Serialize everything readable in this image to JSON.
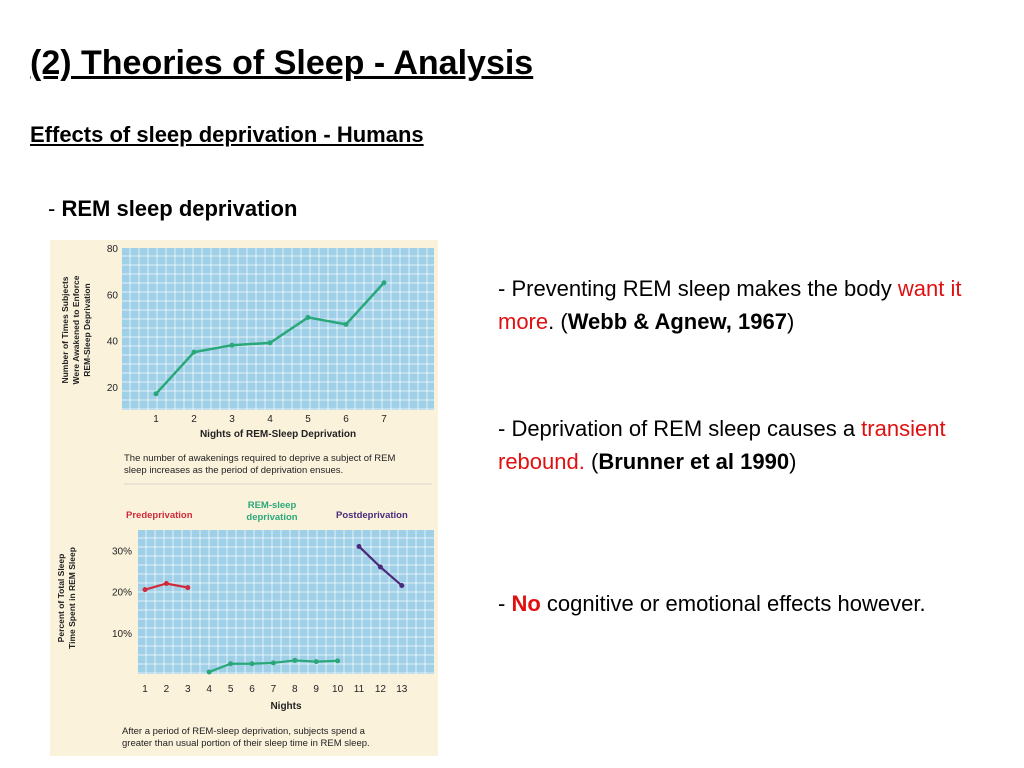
{
  "slide": {
    "title": "(2) Theories of Sleep - Analysis",
    "subtitle": "Effects of sleep deprivation - Humans",
    "heading_dash": "- ",
    "heading": "REM sleep deprivation"
  },
  "points": [
    {
      "pre": "- Preventing REM sleep makes the body ",
      "red": "want it more",
      "mid": ". (",
      "bold": "Webb & Agnew, 1967",
      "post": ")"
    },
    {
      "pre": "- Deprivation of REM sleep causes a ",
      "red": "transient rebound.",
      "mid": " (",
      "bold": "Brunner et al 1990",
      "post": ")"
    },
    {
      "pre": "- ",
      "red": "No",
      "post": " cognitive or emotional effects however."
    }
  ],
  "colors": {
    "accent_red": "#e01010",
    "chart_line": "#2aa87a",
    "post_line": "#4a2a7a",
    "pre_line": "#d02a3a",
    "grid_bg": "#9fd0e8"
  },
  "chart_data": [
    {
      "type": "line",
      "ylabel": "Number of Times Subjects Were Awakened to Enforce REM-Sleep Deprivation",
      "xlabel": "Nights of REM-Sleep Deprivation",
      "x": [
        1,
        2,
        3,
        4,
        5,
        6,
        7
      ],
      "y": [
        17,
        35,
        38,
        39,
        50,
        47,
        65
      ],
      "ylim": [
        10,
        80
      ],
      "yticks": [
        20,
        40,
        60,
        80
      ],
      "caption": "The number of awakenings required to deprive a subject of REM sleep increases as the period of deprivation ensues."
    },
    {
      "type": "line",
      "ylabel": "Percent of Total Sleep Time Spent in REM Sleep",
      "xlabel": "Nights",
      "categories": [
        "1",
        "2",
        "3",
        "4",
        "5",
        "6",
        "7",
        "8",
        "9",
        "10",
        "11",
        "12",
        "13"
      ],
      "yticks": [
        "10%",
        "20%",
        "30%"
      ],
      "ylim": [
        0,
        35
      ],
      "series": [
        {
          "name": "Predeprivation",
          "x": [
            1,
            2,
            3
          ],
          "y": [
            20.5,
            22,
            21
          ]
        },
        {
          "name": "REM-sleep deprivation",
          "x": [
            4,
            5,
            6,
            7,
            8,
            9,
            10
          ],
          "y": [
            0.5,
            2.5,
            2.5,
            2.7,
            3.3,
            3,
            3.2
          ]
        },
        {
          "name": "Postdeprivation",
          "x": [
            11,
            12,
            13
          ],
          "y": [
            31,
            26,
            21.5
          ]
        }
      ],
      "caption": "After a period of REM-sleep deprivation, subjects spend a greater than usual portion of their sleep time in REM sleep."
    }
  ]
}
